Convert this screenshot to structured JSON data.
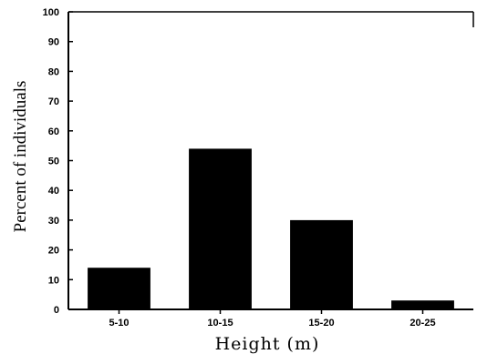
{
  "chart_data": {
    "type": "bar",
    "title": "",
    "xlabel": "Height (m)",
    "ylabel": "Percent of individuals",
    "categories": [
      "5-10",
      "10-15",
      "15-20",
      "20-25"
    ],
    "values": [
      14,
      54,
      30,
      3
    ],
    "ylim": [
      0,
      100
    ],
    "yticks": [
      0,
      10,
      20,
      30,
      40,
      50,
      60,
      70,
      80,
      90,
      100
    ],
    "grid": false,
    "legend": "none",
    "bar_color": "#000000"
  }
}
